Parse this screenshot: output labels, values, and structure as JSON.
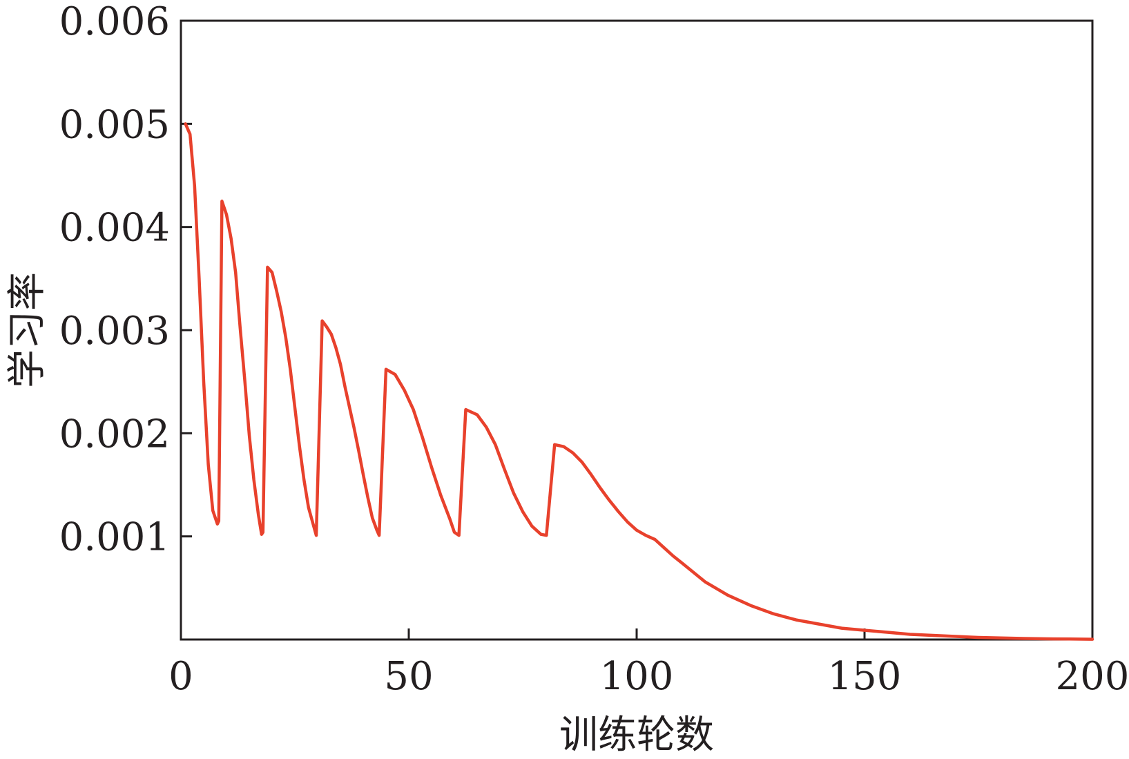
{
  "chart_data": {
    "type": "line",
    "title": "",
    "xlabel": "训练轮数",
    "ylabel": "学习率",
    "xlim": [
      0,
      200
    ],
    "ylim": [
      0,
      0.006
    ],
    "xticks": [
      0,
      50,
      100,
      150,
      200
    ],
    "xtick_labels": [
      "0",
      "50",
      "100",
      "150",
      "200"
    ],
    "yticks": [
      0.001,
      0.002,
      0.003,
      0.004,
      0.005,
      0.006
    ],
    "ytick_labels": [
      "0.001",
      "0.002",
      "0.003",
      "0.004",
      "0.005",
      "0.006"
    ],
    "grid": false,
    "legend": "none",
    "series": [
      {
        "color": "#e8412c",
        "x": [
          1,
          2,
          3,
          4,
          5,
          6,
          7,
          8,
          8.3,
          9,
          10,
          11,
          12,
          13,
          14,
          15,
          16,
          17,
          17.7,
          18,
          19,
          20,
          21,
          22,
          23,
          24,
          25,
          26,
          27,
          28,
          29,
          29.7,
          31,
          32,
          33,
          34,
          35,
          36,
          37,
          38,
          39,
          40,
          41,
          42,
          43,
          43.5,
          45,
          47,
          49,
          51,
          53,
          55,
          57,
          59,
          60,
          61,
          62.5,
          65,
          67,
          69,
          71,
          73,
          75,
          77,
          79,
          80.2,
          82,
          84,
          86,
          88,
          90,
          92,
          94,
          96,
          98,
          100,
          102,
          104,
          106,
          108,
          110,
          115,
          120,
          125,
          130,
          135,
          140,
          145,
          150,
          155,
          160,
          165,
          170,
          175,
          180,
          185,
          190,
          195,
          200
        ],
        "y": [
          0.005,
          0.0049,
          0.0044,
          0.0035,
          0.0025,
          0.0017,
          0.00125,
          0.00112,
          0.00115,
          0.00425,
          0.00412,
          0.00389,
          0.00356,
          0.00302,
          0.00252,
          0.00198,
          0.00155,
          0.00121,
          0.00102,
          0.00104,
          0.00361,
          0.00356,
          0.00338,
          0.00318,
          0.00293,
          0.00262,
          0.00225,
          0.00188,
          0.00155,
          0.00128,
          0.00112,
          0.00101,
          0.00309,
          0.00303,
          0.00296,
          0.00283,
          0.00267,
          0.00245,
          0.00225,
          0.00205,
          0.00183,
          0.0016,
          0.00138,
          0.00118,
          0.00106,
          0.00101,
          0.00262,
          0.00257,
          0.00242,
          0.00223,
          0.00196,
          0.00167,
          0.0014,
          0.00117,
          0.00104,
          0.00101,
          0.00223,
          0.00218,
          0.00206,
          0.00189,
          0.00165,
          0.00142,
          0.00124,
          0.0011,
          0.00102,
          0.00101,
          0.00189,
          0.00187,
          0.00181,
          0.00172,
          0.0016,
          0.00147,
          0.00135,
          0.00124,
          0.00114,
          0.00106,
          0.00101,
          0.00097,
          0.00089,
          0.00081,
          0.00074,
          0.00056,
          0.00043,
          0.00033,
          0.00025,
          0.00019,
          0.00015,
          0.00011,
          9e-05,
          7e-05,
          5e-05,
          4e-05,
          3e-05,
          2e-05,
          1.5e-05,
          1e-05,
          7e-06,
          5e-06,
          3e-06
        ]
      }
    ]
  }
}
